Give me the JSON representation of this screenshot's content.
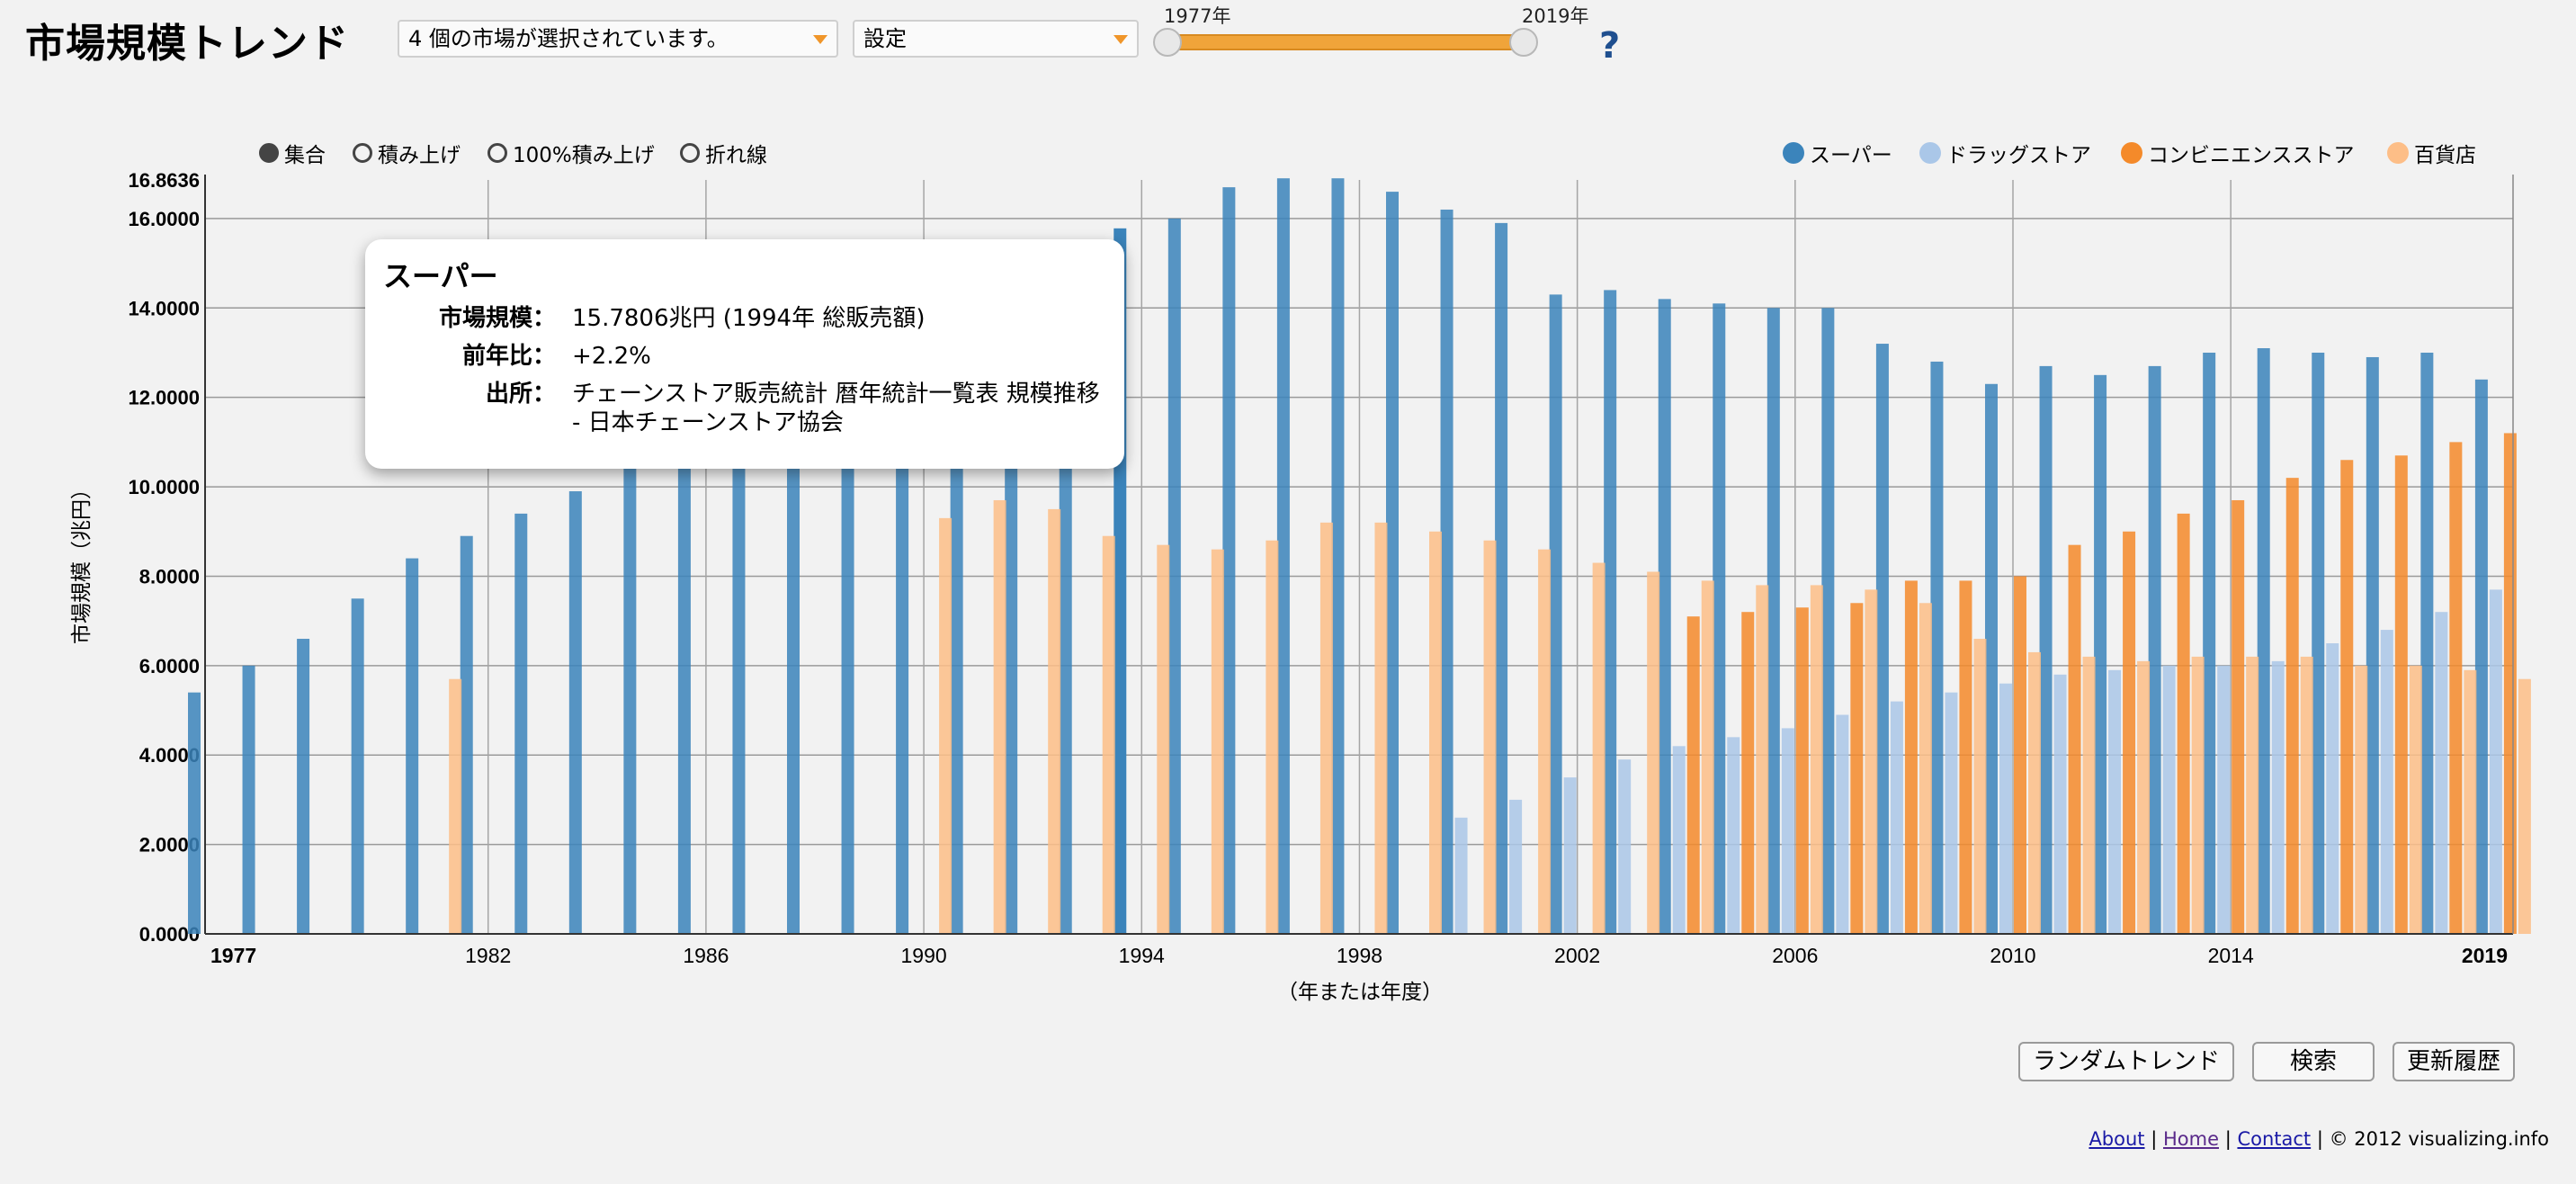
{
  "page": {
    "title": "市場規模トレンド",
    "market_select": "4 個の市場が選択されています。",
    "settings_select": "設定",
    "range_start": "1977年",
    "range_end": "2019年",
    "help": "?"
  },
  "view_options": [
    {
      "label": "集合",
      "selected": true
    },
    {
      "label": "積み上げ",
      "selected": false
    },
    {
      "label": "100%積み上げ",
      "selected": false
    },
    {
      "label": "折れ線",
      "selected": false
    }
  ],
  "tooltip": {
    "title": "スーパー",
    "size_key": "市場規模：",
    "size_value": "15.7806兆円 (1994年 総販売額)",
    "yoy_key": "前年比：",
    "yoy_value": "+2.2%",
    "source_key": "出所：",
    "source_value": "チェーンストア販売統計 暦年統計一覧表 規模推移 - 日本チェーンストア協会"
  },
  "buttons": {
    "random": "ランダムトレンド",
    "search": "検索",
    "history": "更新履歴"
  },
  "footer": {
    "about": "About",
    "sep1": "|",
    "home": "Home",
    "sep2": "|",
    "contact": "Contact",
    "copyright": "| © 2012 visualizing.info"
  },
  "chart_data": {
    "type": "bar",
    "xlabel": "（年または年度）",
    "ylabel": "市場規模（兆円）",
    "ylim": [
      0,
      16.8636
    ],
    "y_ticks": [
      "0.0000",
      "2.0000",
      "4.0000",
      "6.0000",
      "8.0000",
      "10.0000",
      "12.0000",
      "14.0000",
      "16.0000",
      "16.8636"
    ],
    "x_tick_labels": [
      "1977",
      "1982",
      "1986",
      "1990",
      "1994",
      "1998",
      "2002",
      "2006",
      "2010",
      "2014",
      "2019"
    ],
    "grid": true,
    "legend_position": "top-right",
    "categories": [
      "1977",
      "1978",
      "1979",
      "1980",
      "1981",
      "1982",
      "1983",
      "1984",
      "1985",
      "1986",
      "1987",
      "1988",
      "1989",
      "1990",
      "1991",
      "1992",
      "1993",
      "1994",
      "1995",
      "1996",
      "1997",
      "1998",
      "1999",
      "2000",
      "2001",
      "2002",
      "2003",
      "2004",
      "2005",
      "2006",
      "2007",
      "2008",
      "2009",
      "2010",
      "2011",
      "2012",
      "2013",
      "2014",
      "2015",
      "2016",
      "2017",
      "2018",
      "2019"
    ],
    "series": [
      {
        "name": "スーパー",
        "color": "#3b84bb",
        "values": [
          5.4,
          6.0,
          6.6,
          7.5,
          8.4,
          8.9,
          9.4,
          9.9,
          10.5,
          11.0,
          11.5,
          12.0,
          12.6,
          13.3,
          14.1,
          14.5,
          14.9,
          15.7806,
          16.0,
          16.7,
          16.9,
          16.9,
          16.6,
          16.2,
          15.9,
          14.3,
          14.4,
          14.2,
          14.1,
          14.0,
          14.0,
          13.2,
          12.8,
          12.3,
          12.7,
          12.5,
          12.7,
          13.0,
          13.1,
          13.0,
          12.9,
          13.0,
          12.4
        ]
      },
      {
        "name": "ドラッグストア",
        "color": "#aac7e8",
        "values": [
          null,
          null,
          null,
          null,
          null,
          null,
          null,
          null,
          null,
          null,
          null,
          null,
          null,
          null,
          null,
          null,
          null,
          null,
          null,
          null,
          null,
          null,
          null,
          2.6,
          3.0,
          3.5,
          3.9,
          4.2,
          4.4,
          4.6,
          4.9,
          5.2,
          5.4,
          5.6,
          5.8,
          5.9,
          6.0,
          6.0,
          6.1,
          6.5,
          6.8,
          7.2,
          7.7
        ]
      },
      {
        "name": "コンビニエンスストア",
        "color": "#f48a2a",
        "values": [
          null,
          null,
          null,
          null,
          null,
          null,
          null,
          null,
          null,
          null,
          null,
          null,
          null,
          null,
          null,
          null,
          null,
          null,
          null,
          null,
          null,
          null,
          null,
          null,
          null,
          null,
          null,
          7.1,
          7.2,
          7.3,
          7.4,
          7.9,
          7.9,
          8.0,
          8.7,
          9.0,
          9.4,
          9.7,
          10.2,
          10.6,
          10.7,
          11.0,
          11.2
        ]
      },
      {
        "name": "百貨店",
        "color": "#fdbe87",
        "values": [
          null,
          null,
          null,
          null,
          5.7,
          null,
          null,
          null,
          null,
          null,
          null,
          null,
          null,
          9.3,
          9.7,
          9.5,
          8.9,
          8.7,
          8.6,
          8.8,
          9.2,
          9.2,
          9.0,
          8.8,
          8.6,
          8.3,
          8.1,
          7.9,
          7.8,
          7.8,
          7.7,
          7.4,
          6.6,
          6.3,
          6.2,
          6.1,
          6.2,
          6.2,
          6.2,
          6.0,
          6.0,
          5.9,
          5.7
        ]
      }
    ]
  }
}
